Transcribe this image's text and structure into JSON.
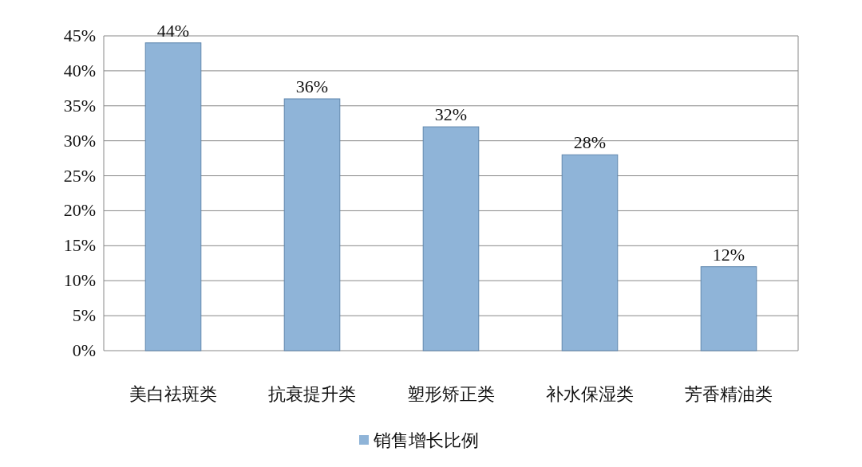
{
  "chart_data": {
    "type": "bar",
    "categories": [
      "美白祛斑类",
      "抗衰提升类",
      "塑形矫正类",
      "补水保湿类",
      "芳香精油类"
    ],
    "series": [
      {
        "name": "销售增长比例",
        "color": "#8fb4d8",
        "values": [
          44,
          36,
          32,
          28,
          12
        ]
      }
    ],
    "ylim": [
      0,
      45
    ],
    "yticks": [
      {
        "value": 0,
        "label": "0%"
      },
      {
        "value": 5,
        "label": "5%"
      },
      {
        "value": 10,
        "label": "10%"
      },
      {
        "value": 15,
        "label": "15%"
      },
      {
        "value": 20,
        "label": "20%"
      },
      {
        "value": 25,
        "label": "25%"
      },
      {
        "value": 30,
        "label": "30%"
      },
      {
        "value": 35,
        "label": "35%"
      },
      {
        "value": 40,
        "label": "40%"
      },
      {
        "value": 45,
        "label": "45%"
      }
    ],
    "grid": "y",
    "legend": "bottom",
    "value_labels": [
      "44%",
      "36%",
      "32%",
      "28%",
      "12%"
    ]
  }
}
